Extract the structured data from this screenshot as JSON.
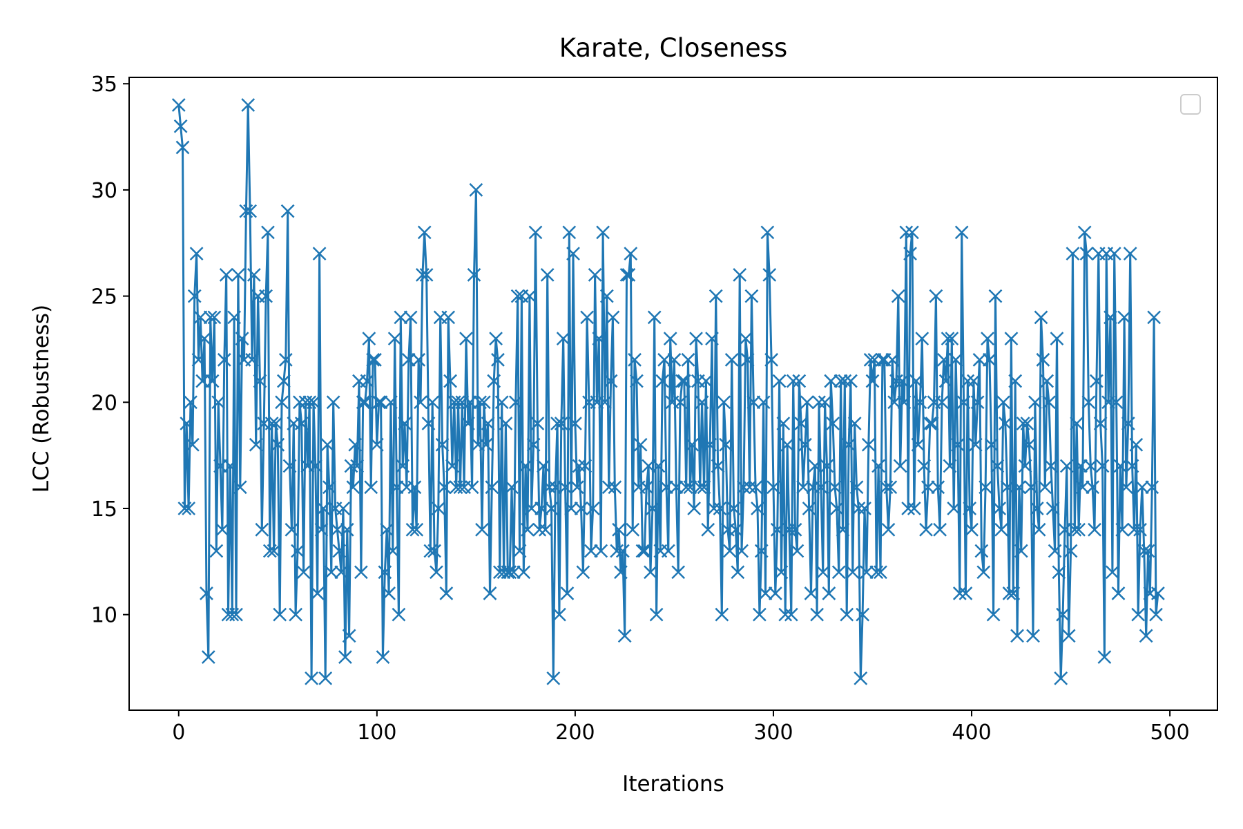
{
  "chart_data": {
    "type": "line",
    "title": "Karate, Closeness",
    "xlabel": "Iterations",
    "ylabel": "LCC (Robustness)",
    "xlim": [
      -25,
      524
    ],
    "ylim": [
      5.5,
      35.3
    ],
    "xticks": [
      0,
      100,
      200,
      300,
      400,
      500
    ],
    "yticks": [
      10,
      15,
      20,
      25,
      30,
      35
    ],
    "grid": false,
    "legend": "top-right",
    "marker": "x",
    "series_color": "#1f77b4",
    "series": [
      {
        "values": [
          34,
          33,
          32,
          15,
          19,
          15,
          20,
          18,
          25,
          27,
          22,
          24,
          21,
          23,
          11,
          8,
          24,
          21,
          24,
          13,
          20,
          17,
          14,
          22,
          26,
          10,
          17,
          10,
          24,
          10,
          26,
          16,
          23,
          22,
          29,
          34,
          29,
          22,
          26,
          18,
          25,
          21,
          14,
          19,
          25,
          28,
          13,
          19,
          13,
          19,
          18,
          10,
          20,
          21,
          22,
          29,
          17,
          14,
          19,
          10,
          13,
          20,
          19,
          12,
          20,
          17,
          20,
          7,
          20,
          17,
          11,
          27,
          14,
          15,
          7,
          18,
          16,
          12,
          20,
          15,
          14,
          13,
          12,
          15,
          8,
          14,
          9,
          17,
          16,
          18,
          17,
          21,
          12,
          20,
          20,
          21,
          23,
          16,
          22,
          22,
          18,
          20,
          20,
          8,
          12,
          14,
          11,
          20,
          13,
          23,
          16,
          10,
          24,
          17,
          19,
          16,
          22,
          24,
          14,
          16,
          14,
          22,
          20,
          26,
          28,
          26,
          19,
          13,
          20,
          13,
          12,
          15,
          24,
          18,
          16,
          11,
          24,
          21,
          17,
          20,
          16,
          20,
          16,
          20,
          16,
          23,
          19,
          20,
          16,
          26,
          30,
          18,
          20,
          14,
          20,
          18,
          19,
          11,
          16,
          21,
          23,
          22,
          12,
          20,
          12,
          19,
          12,
          12,
          16,
          12,
          20,
          25,
          13,
          25,
          12,
          17,
          14,
          25,
          15,
          18,
          28,
          19,
          14,
          15,
          17,
          14,
          26,
          16,
          15,
          7,
          16,
          19,
          10,
          19,
          23,
          16,
          11,
          28,
          15,
          27,
          19,
          16,
          17,
          15,
          12,
          17,
          24,
          20,
          13,
          15,
          26,
          20,
          23,
          13,
          28,
          20,
          25,
          16,
          21,
          24,
          16,
          13,
          14,
          12,
          13,
          9,
          26,
          26,
          27,
          14,
          22,
          21,
          16,
          18,
          13,
          13,
          16,
          17,
          12,
          15,
          24,
          10,
          17,
          13,
          21,
          22,
          16,
          13,
          23,
          20,
          22,
          16,
          12,
          20,
          21,
          21,
          16,
          22,
          16,
          18,
          15,
          23,
          21,
          16,
          20,
          16,
          21,
          14,
          18,
          23,
          15,
          25,
          17,
          15,
          10,
          20,
          18,
          14,
          13,
          22,
          15,
          14,
          12,
          26,
          13,
          16,
          23,
          22,
          16,
          25,
          20,
          16,
          15,
          10,
          13,
          20,
          11,
          28,
          26,
          22,
          16,
          11,
          14,
          21,
          12,
          19,
          10,
          18,
          14,
          10,
          21,
          14,
          13,
          21,
          19,
          16,
          18,
          20,
          15,
          11,
          16,
          17,
          10,
          20,
          16,
          12,
          20,
          17,
          11,
          21,
          19,
          16,
          15,
          12,
          21,
          14,
          21,
          10,
          18,
          21,
          12,
          19,
          16,
          15,
          7,
          10,
          15,
          12,
          18,
          22,
          21,
          22,
          12,
          17,
          12,
          22,
          22,
          16,
          14,
          16,
          22,
          20,
          21,
          25,
          17,
          21,
          20,
          28,
          15,
          27,
          28,
          15,
          21,
          18,
          20,
          23,
          17,
          14,
          16,
          19,
          19,
          20,
          25,
          16,
          14,
          20,
          22,
          21,
          23,
          17,
          23,
          15,
          22,
          18,
          11,
          28,
          20,
          11,
          21,
          15,
          14,
          21,
          18,
          20,
          22,
          13,
          12,
          16,
          23,
          22,
          18,
          10,
          25,
          17,
          15,
          14,
          20,
          19,
          16,
          11,
          23,
          11,
          21,
          9,
          16,
          13,
          19,
          17,
          19,
          18,
          16,
          9,
          20,
          15,
          14,
          24,
          22,
          16,
          21,
          20,
          17,
          15,
          13,
          23,
          12,
          7,
          10,
          14,
          17,
          9,
          13,
          27,
          14,
          19,
          14,
          17,
          16,
          28,
          27,
          20,
          17,
          16,
          14,
          21,
          27,
          19,
          17,
          8,
          27,
          20,
          24,
          12,
          27,
          20,
          11,
          17,
          14,
          24,
          16,
          19,
          27,
          17,
          14,
          18,
          10,
          14,
          16,
          13,
          9,
          13,
          11,
          16,
          24,
          10,
          11
        ]
      }
    ]
  }
}
